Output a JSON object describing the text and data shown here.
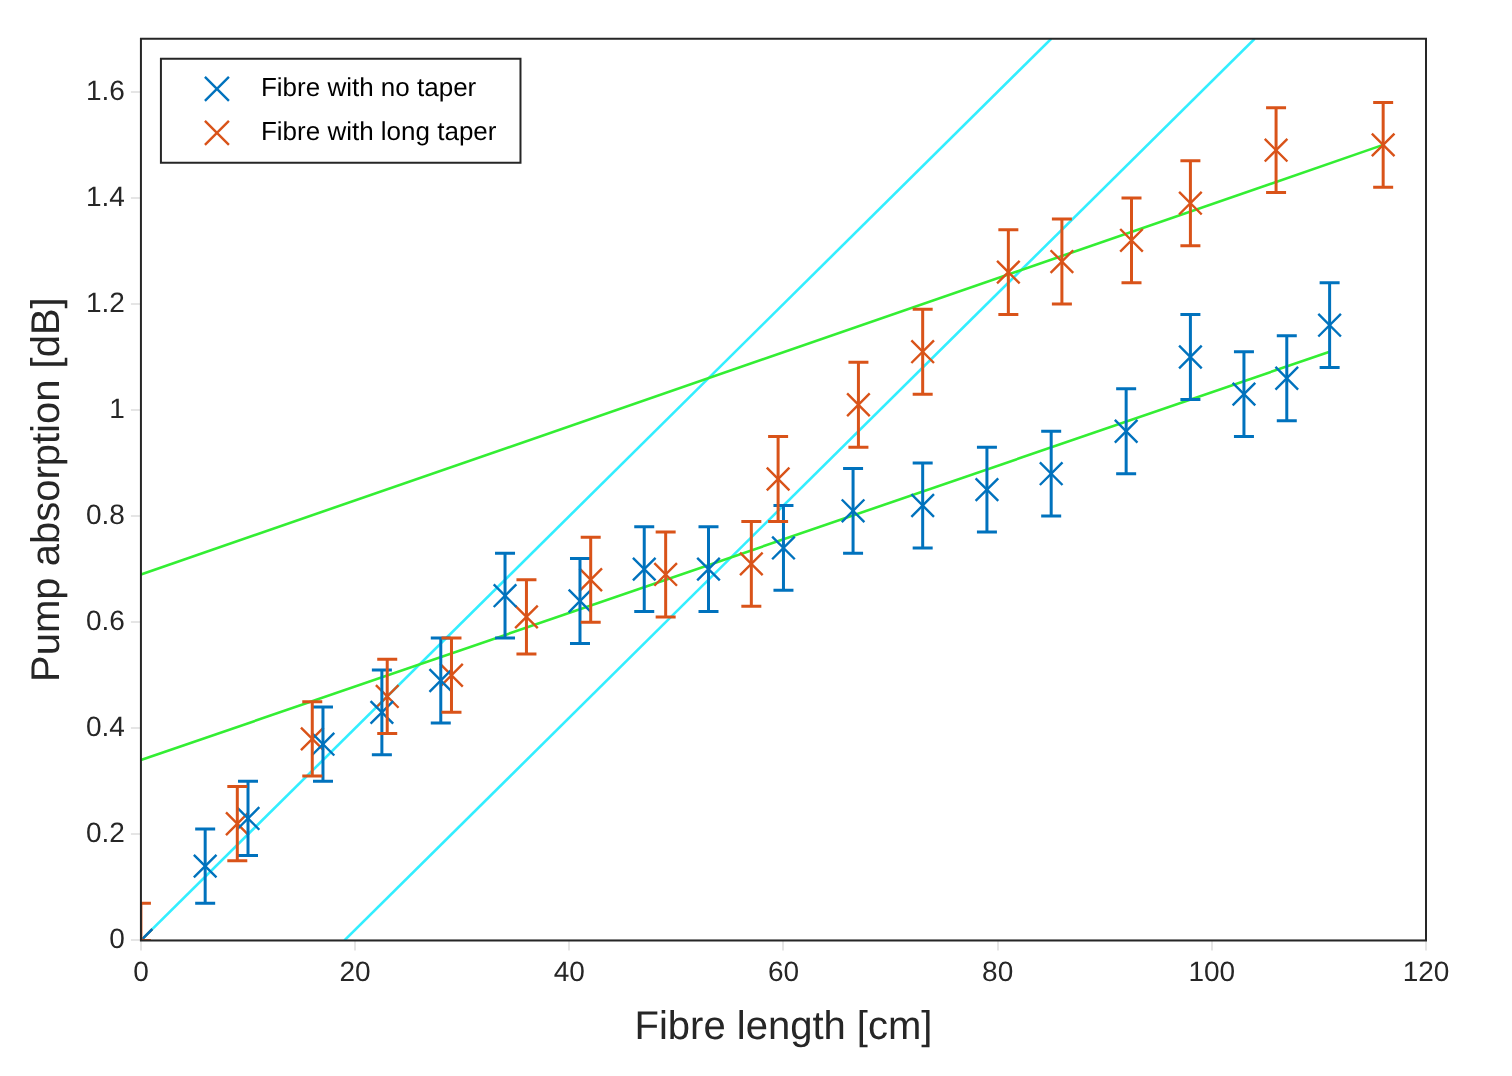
{
  "chart_data": {
    "type": "scatter",
    "xlabel": "Fibre length [cm]",
    "ylabel": "Pump absorption [dB]",
    "xlim": [
      0,
      120
    ],
    "xticks": [
      0,
      20,
      40,
      60,
      80,
      100,
      120
    ],
    "ylim": [
      0,
      1.7
    ],
    "yticks": [
      0,
      0.2,
      0.4,
      0.6,
      0.8,
      1,
      1.2,
      1.4,
      1.6
    ],
    "grid": false,
    "legend": "top left",
    "marker": "cross",
    "series": [
      {
        "name": "Fibre with no taper",
        "color": "#0072bd",
        "x": [
          0,
          6,
          10,
          17,
          22.5,
          28,
          34,
          41,
          47,
          53,
          60,
          66.5,
          73,
          79,
          85,
          92,
          98,
          103,
          107,
          111
        ],
        "values": [
          0,
          0.14,
          0.23,
          0.37,
          0.43,
          0.49,
          0.65,
          0.64,
          0.7,
          0.7,
          0.74,
          0.81,
          0.82,
          0.85,
          0.88,
          0.96,
          1.1,
          1.03,
          1.06,
          1.16
        ],
        "errors": [
          null,
          0.07,
          0.07,
          0.07,
          0.08,
          0.08,
          0.08,
          0.08,
          0.08,
          0.08,
          0.08,
          0.08,
          0.08,
          0.08,
          0.08,
          0.08,
          0.08,
          0.08,
          0.08,
          0.08
        ]
      },
      {
        "name": "Fibre with long taper",
        "color": "#d95319",
        "x": [
          0,
          9,
          16,
          23,
          29,
          36,
          42,
          49,
          57,
          59.5,
          67,
          73,
          81,
          86,
          92.5,
          98,
          106,
          116
        ],
        "values": [
          0,
          0.22,
          0.38,
          0.46,
          0.5,
          0.61,
          0.68,
          0.69,
          0.71,
          0.87,
          1.01,
          1.11,
          1.26,
          1.28,
          1.32,
          1.39,
          1.49,
          1.5
        ],
        "errors": [
          [
            0,
            0.07
          ],
          0.07,
          0.07,
          0.07,
          0.07,
          0.07,
          0.08,
          0.08,
          0.08,
          0.08,
          0.08,
          0.08,
          0.08,
          0.08,
          0.08,
          0.08,
          0.08,
          0.08
        ]
      },
      {
        "type": "line",
        "color": "#33ee33",
        "marker": "none",
        "x": [
          0,
          111
        ],
        "values": [
          0.34,
          1.11
        ]
      },
      {
        "type": "line",
        "color": "#33ee33",
        "marker": "none",
        "x": [
          0,
          116
        ],
        "values": [
          0.69,
          1.5
        ]
      },
      {
        "type": "line",
        "color": "#33eeff",
        "marker": "none",
        "x": [
          0,
          85
        ],
        "values": [
          0,
          1.7
        ]
      },
      {
        "type": "line",
        "color": "#33eeff",
        "marker": "none",
        "x": [
          19,
          104
        ],
        "values": [
          0,
          1.7
        ]
      }
    ]
  }
}
